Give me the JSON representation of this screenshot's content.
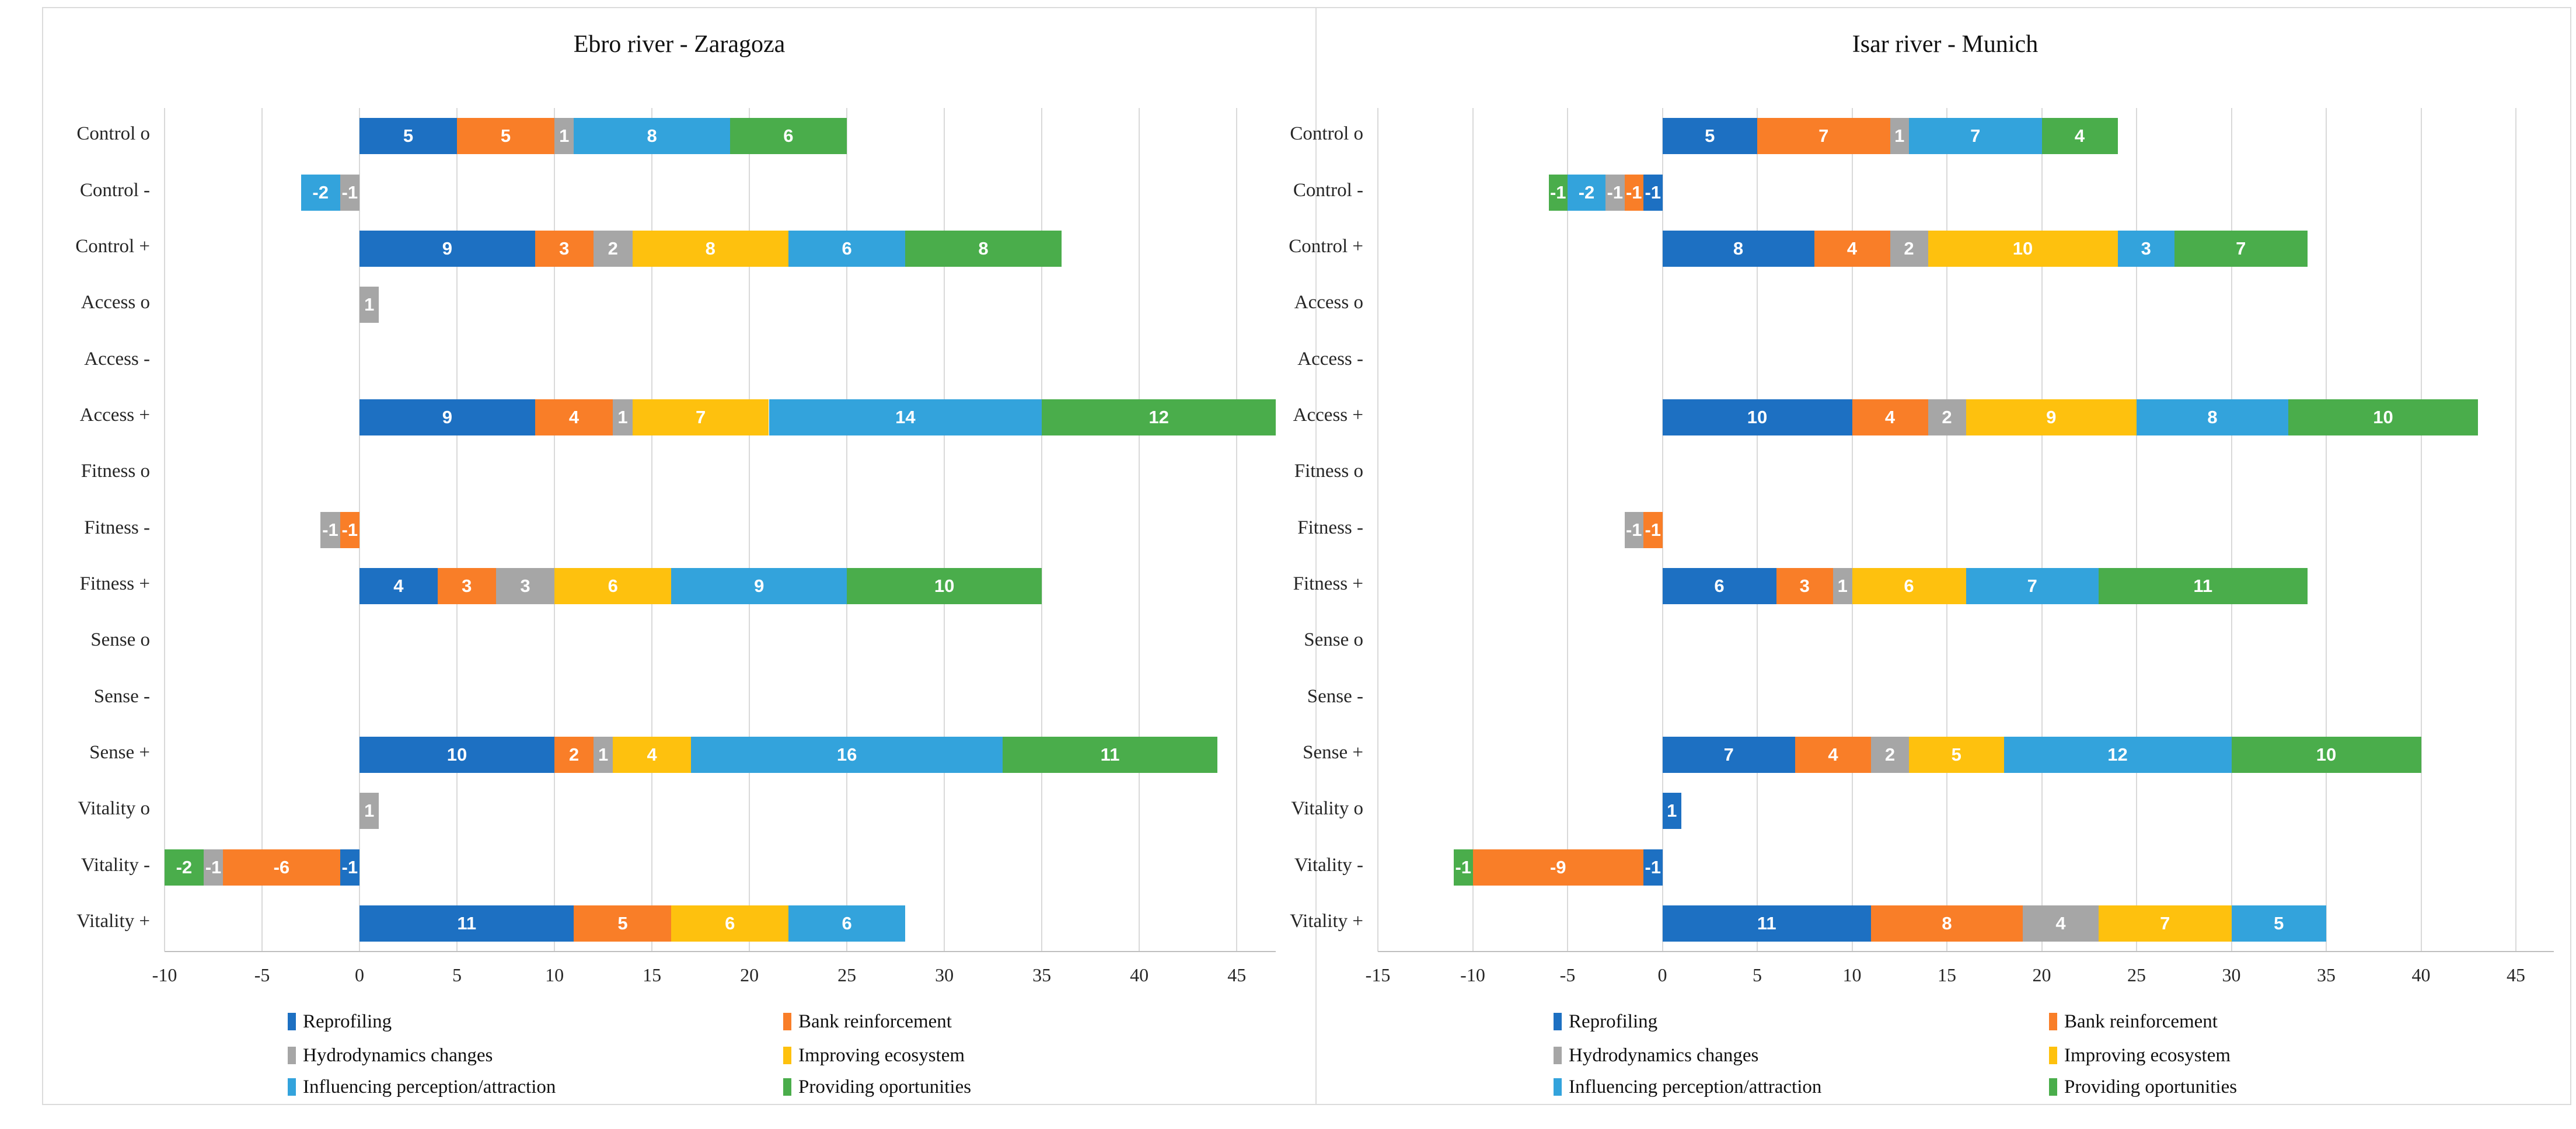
{
  "figure": {
    "border_color": "#DBDBDB",
    "background": "#FFFFFF",
    "value_label_color": "#FFFFFF",
    "gridline_color": "#D9D9D9"
  },
  "chart_data": [
    {
      "type": "bar",
      "orientation": "horizontal",
      "stacked": true,
      "grid": true,
      "legend_position": "bottom",
      "title": "Ebro river - Zaragoza",
      "categories": [
        "Control o",
        "Control -",
        "Control +",
        "Access o",
        "Access -",
        "Access +",
        "Fitness o",
        "Fitness -",
        "Fitness +",
        "Sense o",
        "Sense -",
        "Sense +",
        "Vitality o",
        "Vitality -",
        "Vitality +"
      ],
      "series": [
        {
          "name": "Reprofiling",
          "color": "#1D70C2",
          "values": [
            5,
            0,
            9,
            0,
            0,
            9,
            0,
            0,
            4,
            0,
            0,
            10,
            0,
            -1,
            11
          ]
        },
        {
          "name": "Bank reinforcement",
          "color": "#F97E28",
          "values": [
            5,
            0,
            3,
            0,
            0,
            4,
            0,
            -1,
            3,
            0,
            0,
            2,
            0,
            -6,
            5
          ]
        },
        {
          "name": "Hydrodynamics changes",
          "color": "#A6A6A6",
          "values": [
            1,
            -1,
            2,
            1,
            0,
            1,
            0,
            -1,
            3,
            0,
            0,
            1,
            1,
            -1,
            0
          ]
        },
        {
          "name": "Improving ecosystem",
          "color": "#FEC10E",
          "values": [
            0,
            0,
            8,
            0,
            0,
            7,
            0,
            0,
            6,
            0,
            0,
            4,
            0,
            0,
            6
          ]
        },
        {
          "name": "Influencing perception/attraction",
          "color": "#33A3DC",
          "values": [
            8,
            -2,
            6,
            0,
            0,
            14,
            0,
            0,
            9,
            0,
            0,
            16,
            0,
            0,
            6
          ]
        },
        {
          "name": "Providing oportunities",
          "color": "#4AAD4B",
          "values": [
            6,
            0,
            8,
            0,
            0,
            12,
            0,
            0,
            10,
            0,
            0,
            11,
            0,
            -2,
            0
          ]
        }
      ],
      "x_ticks": [
        "-10",
        "-5",
        "0",
        "5",
        "10",
        "15",
        "20",
        "25",
        "30",
        "35",
        "40",
        "45"
      ],
      "x_tick_values": [
        -10,
        -5,
        0,
        5,
        10,
        15,
        20,
        25,
        30,
        35,
        40,
        45
      ],
      "x_range": [
        -10,
        47
      ]
    },
    {
      "type": "bar",
      "orientation": "horizontal",
      "stacked": true,
      "grid": true,
      "legend_position": "bottom",
      "title": "Isar river - Munich",
      "categories": [
        "Control o",
        "Control -",
        "Control +",
        "Access o",
        "Access -",
        "Access +",
        "Fitness o",
        "Fitness -",
        "Fitness +",
        "Sense o",
        "Sense -",
        "Sense +",
        "Vitality o",
        "Vitality -",
        "Vitality +"
      ],
      "series": [
        {
          "name": "Reprofiling",
          "color": "#1D70C2",
          "values": [
            5,
            -1,
            8,
            0,
            0,
            10,
            0,
            0,
            6,
            0,
            0,
            7,
            1,
            -1,
            11
          ]
        },
        {
          "name": "Bank reinforcement",
          "color": "#F97E28",
          "values": [
            7,
            -1,
            4,
            0,
            0,
            4,
            0,
            -1,
            3,
            0,
            0,
            4,
            0,
            -9,
            8
          ]
        },
        {
          "name": "Hydrodynamics changes",
          "color": "#A6A6A6",
          "values": [
            1,
            -1,
            2,
            0,
            0,
            2,
            0,
            -1,
            1,
            0,
            0,
            2,
            0,
            0,
            4
          ]
        },
        {
          "name": "Improving ecosystem",
          "color": "#FEC10E",
          "values": [
            0,
            0,
            10,
            0,
            0,
            9,
            0,
            0,
            6,
            0,
            0,
            5,
            0,
            0,
            7
          ]
        },
        {
          "name": "Influencing perception/attraction",
          "color": "#33A3DC",
          "values": [
            7,
            -2,
            3,
            0,
            0,
            8,
            0,
            0,
            7,
            0,
            0,
            12,
            0,
            0,
            5
          ]
        },
        {
          "name": "Providing oportunities",
          "color": "#4AAD4B",
          "values": [
            4,
            -1,
            7,
            0,
            0,
            10,
            0,
            0,
            11,
            0,
            0,
            10,
            0,
            -1,
            0
          ]
        }
      ],
      "x_ticks": [
        "-15",
        "-10",
        "-5",
        "0",
        "5",
        "10",
        "15",
        "20",
        "25",
        "30",
        "35",
        "40",
        "45"
      ],
      "x_tick_values": [
        -15,
        -10,
        -5,
        0,
        5,
        10,
        15,
        20,
        25,
        30,
        35,
        40,
        45
      ],
      "x_range": [
        -15,
        47
      ]
    }
  ]
}
